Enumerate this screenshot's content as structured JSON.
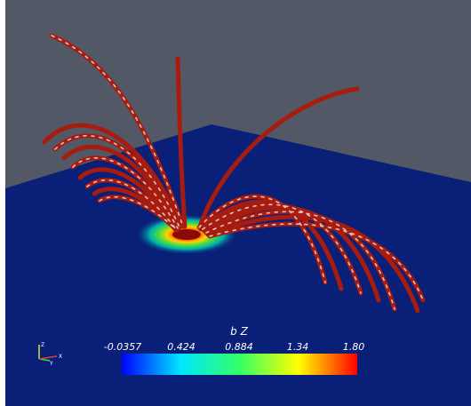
{
  "colorbar": {
    "title": "b Z",
    "ticks": [
      "-0.0357",
      "0.424",
      "0.884",
      "1.34",
      "1.80"
    ],
    "range": [
      -0.0357,
      1.8
    ],
    "gradient_colors": [
      "#0000ff",
      "#00e6ff",
      "#33ff66",
      "#ffff00",
      "#ff0000"
    ]
  },
  "colors": {
    "background": "#525866",
    "ground_plane": "#0a1f78",
    "field_line": "#a81c10",
    "field_line_highlight": "#e8e2d8"
  },
  "axes_widget": {
    "labels": [
      "Z",
      "Y",
      "X"
    ],
    "colors": [
      "#dcdc3c",
      "#3cdc3c",
      "#dc3c3c"
    ]
  }
}
